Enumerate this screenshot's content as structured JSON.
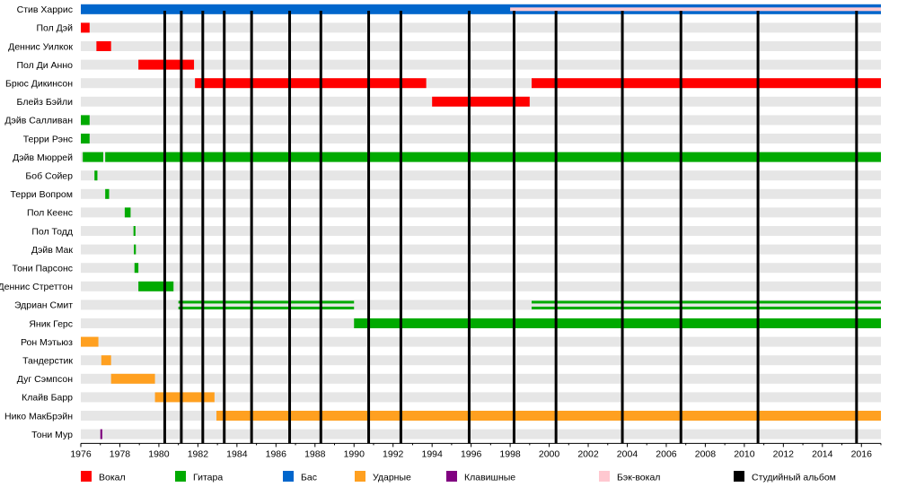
{
  "chart_data": {
    "type": "timeline",
    "x_range": [
      1976,
      2017
    ],
    "x_ticks": [
      "1976",
      "1978",
      "1980",
      "1982",
      "1984",
      "1986",
      "1988",
      "1990",
      "1992",
      "1994",
      "1996",
      "1998",
      "2000",
      "2002",
      "2004",
      "2006",
      "2008",
      "2010",
      "2012",
      "2014",
      "2016"
    ],
    "grid": "alternating-row-stripes",
    "legend_position": "bottom",
    "roles": [
      {
        "id": "vocal",
        "name": "Вокал",
        "color": "#ff0000"
      },
      {
        "id": "guitar",
        "name": "Гитара",
        "color": "#00aa00"
      },
      {
        "id": "bass",
        "name": "Бас",
        "color": "#0066cc"
      },
      {
        "id": "drums",
        "name": "Ударные",
        "color": "#ffa020"
      },
      {
        "id": "keys",
        "name": "Клавишные",
        "color": "#800080"
      },
      {
        "id": "backing",
        "name": "Бэк-вокал",
        "color": "#ffc8d0"
      },
      {
        "id": "album",
        "name": "Студийный альбом",
        "color": "#000000"
      }
    ],
    "albums": [
      1980.3,
      1981.15,
      1982.25,
      1983.35,
      1984.75,
      1986.7,
      1988.3,
      1990.75,
      1992.4,
      1995.9,
      1998.2,
      2000.35,
      2003.75,
      2006.75,
      2010.7,
      2015.75
    ],
    "members": [
      {
        "name": "Стив Харрис",
        "periods": [
          {
            "role": "bass",
            "start": 1976.0,
            "end": 2017.0
          },
          {
            "role": "backing",
            "start": 1998.0,
            "end": 2017.0
          }
        ]
      },
      {
        "name": "Пол Дэй",
        "periods": [
          {
            "role": "vocal",
            "start": 1976.0,
            "end": 1976.45
          }
        ]
      },
      {
        "name": "Деннис Уилкок",
        "periods": [
          {
            "role": "vocal",
            "start": 1976.8,
            "end": 1977.55
          }
        ]
      },
      {
        "name": "Пол Ди Анно",
        "periods": [
          {
            "role": "vocal",
            "start": 1978.95,
            "end": 1981.8
          }
        ]
      },
      {
        "name": "Брюс Дикинсон",
        "periods": [
          {
            "role": "vocal",
            "start": 1981.85,
            "end": 1993.7
          },
          {
            "role": "vocal",
            "start": 1999.1,
            "end": 2017.0
          }
        ]
      },
      {
        "name": "Блейз Бэйли",
        "periods": [
          {
            "role": "vocal",
            "start": 1994.0,
            "end": 1999.0
          }
        ]
      },
      {
        "name": "Дэйв Салливан",
        "periods": [
          {
            "role": "guitar",
            "start": 1976.0,
            "end": 1976.45
          }
        ]
      },
      {
        "name": "Терри Рэнс",
        "periods": [
          {
            "role": "guitar",
            "start": 1976.0,
            "end": 1976.45
          }
        ]
      },
      {
        "name": "Дэйв Мюррей",
        "periods": [
          {
            "role": "guitar",
            "start": 1976.1,
            "end": 1977.15
          },
          {
            "role": "guitar",
            "start": 1977.25,
            "end": 2017.0
          }
        ]
      },
      {
        "name": "Боб Сойер",
        "periods": [
          {
            "role": "guitar",
            "start": 1976.7,
            "end": 1976.85
          }
        ]
      },
      {
        "name": "Терри Вопром",
        "periods": [
          {
            "role": "guitar",
            "start": 1977.25,
            "end": 1977.45
          }
        ]
      },
      {
        "name": "Пол Кеенс",
        "periods": [
          {
            "role": "guitar",
            "start": 1978.25,
            "end": 1978.55
          }
        ]
      },
      {
        "name": "Пол Тодд",
        "periods": [
          {
            "role": "guitar",
            "start": 1978.7,
            "end": 1978.8
          }
        ]
      },
      {
        "name": "Дэйв Мак",
        "periods": [
          {
            "role": "guitar",
            "start": 1978.72,
            "end": 1978.82
          }
        ]
      },
      {
        "name": "Тони Парсонс",
        "periods": [
          {
            "role": "guitar",
            "start": 1978.75,
            "end": 1978.95
          }
        ]
      },
      {
        "name": "Деннис Стреттон",
        "periods": [
          {
            "role": "guitar",
            "start": 1978.95,
            "end": 1980.75
          }
        ]
      },
      {
        "name": "Эдриан Смит",
        "periods": [
          {
            "role": "guitar",
            "start": 1981.0,
            "end": 1990.0
          },
          {
            "role": "guitar",
            "start": 1999.1,
            "end": 2017.0
          }
        ]
      },
      {
        "name": "Яник Герс",
        "periods": [
          {
            "role": "guitar",
            "start": 1990.0,
            "end": 2017.0
          }
        ]
      },
      {
        "name": "Рон Мэтьюз",
        "periods": [
          {
            "role": "drums",
            "start": 1976.0,
            "end": 1976.9
          }
        ]
      },
      {
        "name": "Тандерстик",
        "periods": [
          {
            "role": "drums",
            "start": 1977.05,
            "end": 1977.55
          }
        ]
      },
      {
        "name": "Дуг Сэмпсон",
        "periods": [
          {
            "role": "drums",
            "start": 1977.55,
            "end": 1979.8
          }
        ]
      },
      {
        "name": "Клайв Барр",
        "periods": [
          {
            "role": "drums",
            "start": 1979.8,
            "end": 1982.85
          }
        ]
      },
      {
        "name": "Нико МакБрэйн",
        "periods": [
          {
            "role": "drums",
            "start": 1982.95,
            "end": 2017.0
          }
        ]
      },
      {
        "name": "Тони Мур",
        "periods": [
          {
            "role": "keys",
            "start": 1977.0,
            "end": 1977.1
          }
        ]
      }
    ]
  }
}
